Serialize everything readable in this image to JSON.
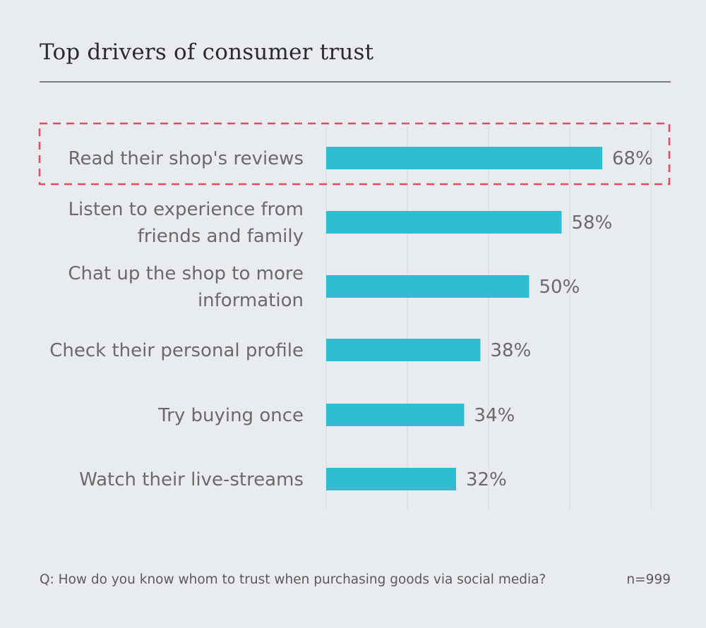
{
  "title": "Top drivers of consumer trust",
  "footnote": "Q: How do you know whom to trust when purchasing goods via social media?",
  "sample_size": "n=999",
  "colors": {
    "bar": "#2fbdd2",
    "highlight_border": "#e64a5f",
    "gridline": "#d6dadc",
    "background": "#e8ecee"
  },
  "chart_data": {
    "type": "bar",
    "orientation": "horizontal",
    "categories": [
      [
        "Read their shop's reviews"
      ],
      [
        "Listen to experience from",
        "friends and family"
      ],
      [
        "Chat up the shop to more",
        "information"
      ],
      [
        "Check their personal profile"
      ],
      [
        "Try buying once"
      ],
      [
        "Watch their live-streams"
      ]
    ],
    "values": [
      68,
      58,
      50,
      38,
      34,
      32
    ],
    "value_labels": [
      "68%",
      "58%",
      "50%",
      "38%",
      "34%",
      "32%"
    ],
    "xlim": [
      0,
      80
    ],
    "grid": true,
    "highlighted_category_index": 0
  }
}
